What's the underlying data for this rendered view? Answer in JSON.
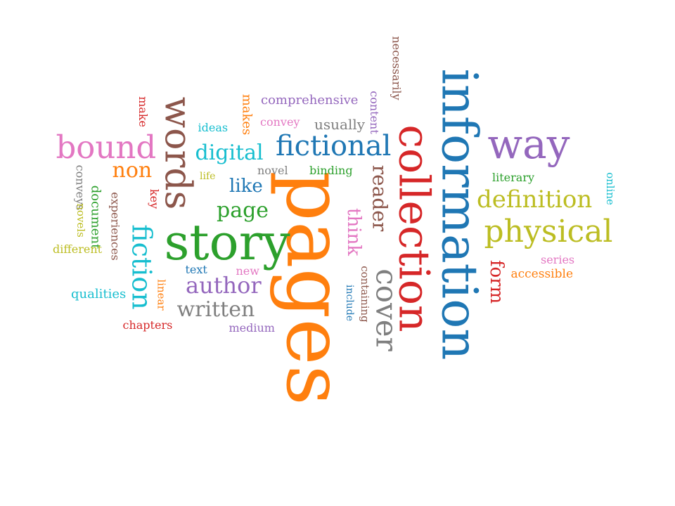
{
  "words": [
    {
      "text": "pages",
      "color": "#ff7f0e",
      "vertical": true
    },
    {
      "text": "information",
      "color": "#1f77b4",
      "vertical": true
    },
    {
      "text": "collection",
      "color": "#d62728",
      "vertical": true
    },
    {
      "text": "story",
      "color": "#2ca02c",
      "vertical": false
    },
    {
      "text": "words",
      "color": "#8c564b",
      "vertical": true
    },
    {
      "text": "way",
      "color": "#9467bd",
      "vertical": false
    },
    {
      "text": "physical",
      "color": "#bcbd22",
      "vertical": false
    },
    {
      "text": "bound",
      "color": "#e377c2",
      "vertical": false
    },
    {
      "text": "fictional",
      "color": "#1f77b4",
      "vertical": false
    },
    {
      "text": "cover",
      "color": "#7f7f7f",
      "vertical": true
    },
    {
      "text": "definition",
      "color": "#bcbd22",
      "vertical": false
    },
    {
      "text": "fiction",
      "color": "#17becf",
      "vertical": true
    },
    {
      "text": "digital",
      "color": "#17becf",
      "vertical": false
    },
    {
      "text": "author",
      "color": "#9467bd",
      "vertical": false
    },
    {
      "text": "written",
      "color": "#7f7f7f",
      "vertical": false
    },
    {
      "text": "page",
      "color": "#2ca02c",
      "vertical": false
    },
    {
      "text": "non",
      "color": "#ff7f0e",
      "vertical": false
    },
    {
      "text": "like",
      "color": "#1f77b4",
      "vertical": false
    },
    {
      "text": "reader",
      "color": "#8c564b",
      "vertical": true
    },
    {
      "text": "think",
      "color": "#e377c2",
      "vertical": true
    },
    {
      "text": "form",
      "color": "#d62728",
      "vertical": true
    },
    {
      "text": "usually",
      "color": "#7f7f7f",
      "vertical": false
    },
    {
      "text": "comprehensive",
      "color": "#9467bd",
      "vertical": false
    },
    {
      "text": "makes",
      "color": "#ff7f0e",
      "vertical": true
    },
    {
      "text": "convey",
      "color": "#e377c2",
      "vertical": false
    },
    {
      "text": "ideas",
      "color": "#17becf",
      "vertical": false
    },
    {
      "text": "make",
      "color": "#d62728",
      "vertical": true
    },
    {
      "text": "content",
      "color": "#9467bd",
      "vertical": true
    },
    {
      "text": "necessarily",
      "color": "#8c564b",
      "vertical": true
    },
    {
      "text": "novel",
      "color": "#7f7f7f",
      "vertical": false
    },
    {
      "text": "binding",
      "color": "#2ca02c",
      "vertical": false
    },
    {
      "text": "life",
      "color": "#bcbd22",
      "vertical": false
    },
    {
      "text": "document",
      "color": "#2ca02c",
      "vertical": true
    },
    {
      "text": "conveys",
      "color": "#7f7f7f",
      "vertical": true
    },
    {
      "text": "novels",
      "color": "#bcbd22",
      "vertical": true
    },
    {
      "text": "experiences",
      "color": "#8c564b",
      "vertical": true
    },
    {
      "text": "key",
      "color": "#d62728",
      "vertical": true
    },
    {
      "text": "different",
      "color": "#bcbd22",
      "vertical": false
    },
    {
      "text": "qualities",
      "color": "#17becf",
      "vertical": false
    },
    {
      "text": "linear",
      "color": "#ff7f0e",
      "vertical": true
    },
    {
      "text": "chapters",
      "color": "#d62728",
      "vertical": false
    },
    {
      "text": "text",
      "color": "#1f77b4",
      "vertical": false
    },
    {
      "text": "new",
      "color": "#e377c2",
      "vertical": false
    },
    {
      "text": "medium",
      "color": "#9467bd",
      "vertical": false
    },
    {
      "text": "containing",
      "color": "#8c564b",
      "vertical": true
    },
    {
      "text": "include",
      "color": "#1f77b4",
      "vertical": true
    },
    {
      "text": "literary",
      "color": "#2ca02c",
      "vertical": false
    },
    {
      "text": "online",
      "color": "#17becf",
      "vertical": true
    },
    {
      "text": "series",
      "color": "#e377c2",
      "vertical": false
    },
    {
      "text": "accessible",
      "color": "#ff7f0e",
      "vertical": false
    }
  ]
}
